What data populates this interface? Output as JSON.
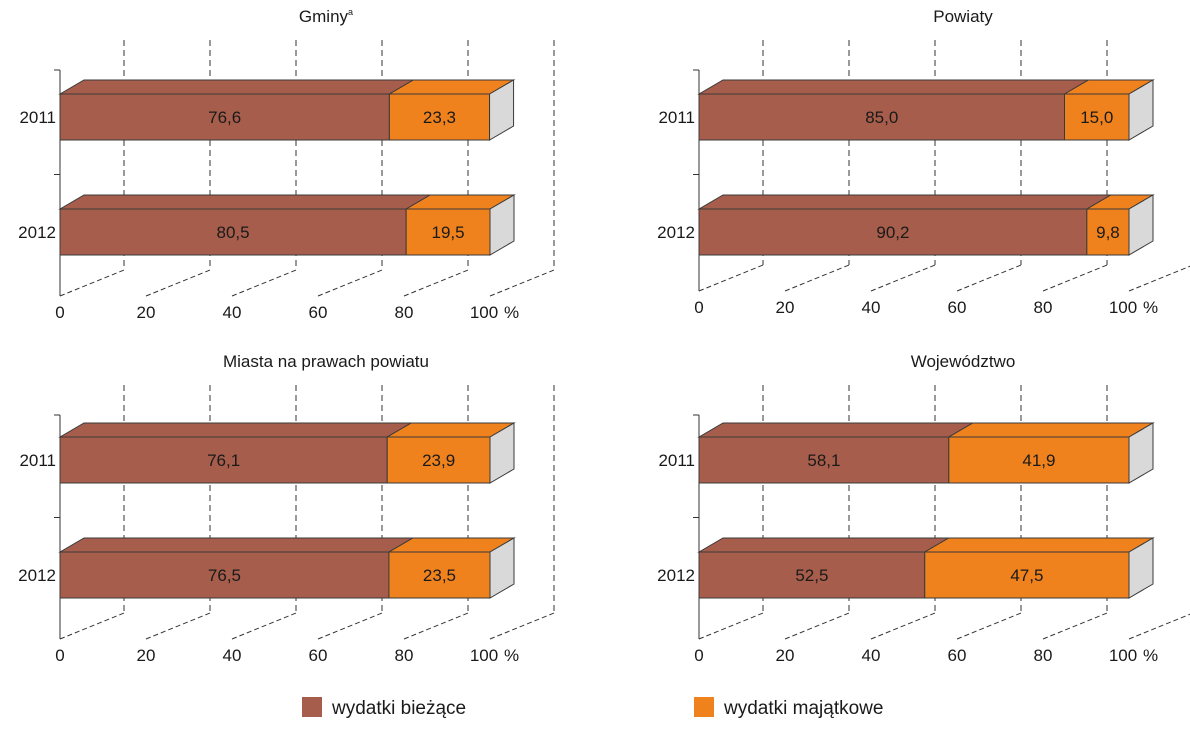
{
  "chart_data": [
    {
      "type": "bar",
      "orientation": "horizontal",
      "stacked": true,
      "title": "Gminy",
      "title_superscript": "a",
      "categories": [
        "2011",
        "2012"
      ],
      "series": [
        {
          "name": "wydatki bieżące",
          "values": [
            76.6,
            80.5
          ],
          "labels": [
            "76,6",
            "80,5"
          ]
        },
        {
          "name": "wydatki majątkowe",
          "values": [
            23.3,
            19.5
          ],
          "labels": [
            "23,3",
            "19,5"
          ]
        }
      ],
      "xlim": [
        0,
        100
      ],
      "xticks": [
        "0",
        "20",
        "40",
        "60",
        "80",
        "100"
      ],
      "xunit": "%"
    },
    {
      "type": "bar",
      "orientation": "horizontal",
      "stacked": true,
      "title": "Powiaty",
      "title_superscript": "",
      "categories": [
        "2011",
        "2012"
      ],
      "series": [
        {
          "name": "wydatki bieżące",
          "values": [
            85.0,
            90.2
          ],
          "labels": [
            "85,0",
            "90,2"
          ]
        },
        {
          "name": "wydatki majątkowe",
          "values": [
            15.0,
            9.8
          ],
          "labels": [
            "15,0",
            "9,8"
          ]
        }
      ],
      "xlim": [
        0,
        100
      ],
      "xticks": [
        "0",
        "20",
        "40",
        "60",
        "80",
        "100"
      ],
      "xunit": "%"
    },
    {
      "type": "bar",
      "orientation": "horizontal",
      "stacked": true,
      "title": "Miasta na prawach powiatu",
      "title_superscript": "",
      "categories": [
        "2011",
        "2012"
      ],
      "series": [
        {
          "name": "wydatki bieżące",
          "values": [
            76.1,
            76.5
          ],
          "labels": [
            "76,1",
            "76,5"
          ]
        },
        {
          "name": "wydatki majątkowe",
          "values": [
            23.9,
            23.5
          ],
          "labels": [
            "23,9",
            "23,5"
          ]
        }
      ],
      "xlim": [
        0,
        100
      ],
      "xticks": [
        "0",
        "20",
        "40",
        "60",
        "80",
        "100"
      ],
      "xunit": "%"
    },
    {
      "type": "bar",
      "orientation": "horizontal",
      "stacked": true,
      "title": "Województwo",
      "title_superscript": "",
      "categories": [
        "2011",
        "2012"
      ],
      "series": [
        {
          "name": "wydatki bieżące",
          "values": [
            58.1,
            52.5
          ],
          "labels": [
            "58,1",
            "52,5"
          ]
        },
        {
          "name": "wydatki majątkowe",
          "values": [
            41.9,
            47.5
          ],
          "labels": [
            "41,9",
            "47,5"
          ]
        }
      ],
      "xlim": [
        0,
        100
      ],
      "xticks": [
        "0",
        "20",
        "40",
        "60",
        "80",
        "100"
      ],
      "xunit": "%"
    }
  ],
  "legend": {
    "placement": "bottom",
    "items": [
      {
        "label": "wydatki bieżące",
        "color": "#a65d4b"
      },
      {
        "label": "wydatki majątkowe",
        "color": "#f0821e"
      }
    ]
  },
  "colors": {
    "current_front": "#a65d4b",
    "current_top": "#a65d4b",
    "capital_front": "#f0821e",
    "capital_top": "#f0821e",
    "end_cap": "#d9d9d9",
    "stroke": "#3a3a3a",
    "grid": "#333333"
  }
}
